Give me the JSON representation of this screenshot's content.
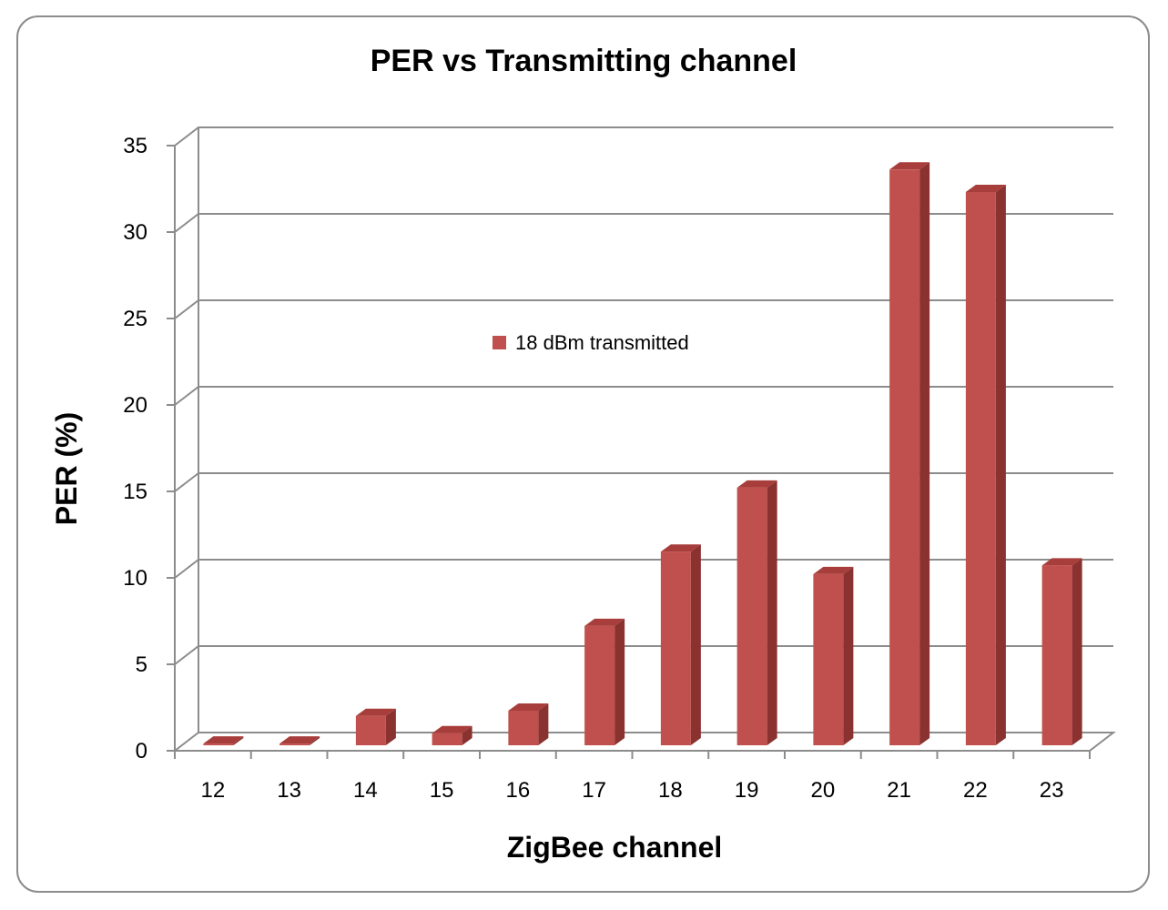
{
  "chart_data": {
    "type": "bar",
    "title": "PER vs Transmitting channel",
    "xlabel": "ZigBee channel",
    "ylabel": "PER (%)",
    "ylim": [
      0,
      35
    ],
    "yticks": [
      0,
      5,
      10,
      15,
      20,
      25,
      30,
      35
    ],
    "grid": true,
    "legend_position": "center",
    "categories": [
      "12",
      "13",
      "14",
      "15",
      "16",
      "17",
      "18",
      "19",
      "20",
      "21",
      "22",
      "23"
    ],
    "series": [
      {
        "name": "18 dBm transmitted",
        "color": "#c0504d",
        "values": [
          0.1,
          0.1,
          1.7,
          0.7,
          2.0,
          6.9,
          11.2,
          14.9,
          9.9,
          33.3,
          32.0,
          10.4
        ]
      }
    ]
  }
}
